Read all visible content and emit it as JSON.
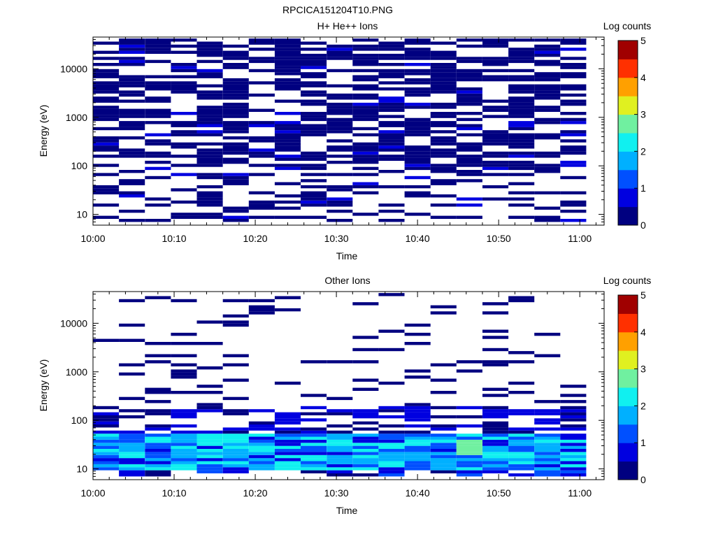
{
  "figure": {
    "title": "RPCICA151204T10.PNG"
  },
  "colors": {
    "background": "#ffffff",
    "axis": "#000000",
    "colormap": [
      "#000080",
      "#0000e0",
      "#0050ff",
      "#00b0ff",
      "#10f0f0",
      "#70f0a0",
      "#e0f020",
      "#ffa000",
      "#ff3000",
      "#a00000"
    ]
  },
  "chart_data": [
    {
      "type": "heatmap",
      "title": "H+ He++ Ions",
      "xlabel": "Time",
      "ylabel": "Energy (eV)",
      "x_tick_labels": [
        "10:00",
        "10:10",
        "10:20",
        "10:30",
        "10:40",
        "10:50",
        "11:00"
      ],
      "x_ticks_min": [
        0,
        10,
        20,
        30,
        40,
        50,
        60
      ],
      "xlim_min": [
        0,
        63
      ],
      "y_scale": "log",
      "ylim": [
        6,
        45000
      ],
      "y_tick_labels": [
        "10",
        "100",
        "1000",
        "10000"
      ],
      "y_ticks": [
        10,
        100,
        1000,
        10000
      ],
      "colorbar": {
        "label": "Log counts",
        "range": [
          0,
          5
        ],
        "tick_labels": [
          "0",
          "1",
          "2",
          "3",
          "4",
          "5"
        ]
      },
      "time_bins": 19,
      "bin_width_min": 3.2,
      "description": "Sparse stripes of low log counts (~0-0.6) at energies from ~8 eV to ~40000 eV across all time bins; densest above 100 eV",
      "value_range": [
        0,
        0.6
      ]
    },
    {
      "type": "heatmap",
      "title": "Other Ions",
      "xlabel": "Time",
      "ylabel": "Energy (eV)",
      "x_tick_labels": [
        "10:00",
        "10:10",
        "10:20",
        "10:30",
        "10:40",
        "10:50",
        "11:00"
      ],
      "x_ticks_min": [
        0,
        10,
        20,
        30,
        40,
        50,
        60
      ],
      "xlim_min": [
        0,
        63
      ],
      "y_scale": "log",
      "ylim": [
        6,
        45000
      ],
      "y_tick_labels": [
        "10",
        "100",
        "1000",
        "10000"
      ],
      "y_ticks": [
        10,
        100,
        1000,
        10000
      ],
      "colorbar": {
        "label": "Log counts",
        "range": [
          0,
          5
        ],
        "tick_labels": [
          "0",
          "1",
          "2",
          "3",
          "4",
          "5"
        ]
      },
      "time_bins": 19,
      "bin_width_min": 3.2,
      "description": "Dense band of elevated log counts (~1-3) between ~10 eV and ~50 eV in all time bins; peak near 2.8 around 10:46 at ~30 eV; sparse low-count lines above 100 eV",
      "peak": {
        "time": "10:46",
        "energy_eV": 30,
        "value": 2.8
      }
    }
  ]
}
